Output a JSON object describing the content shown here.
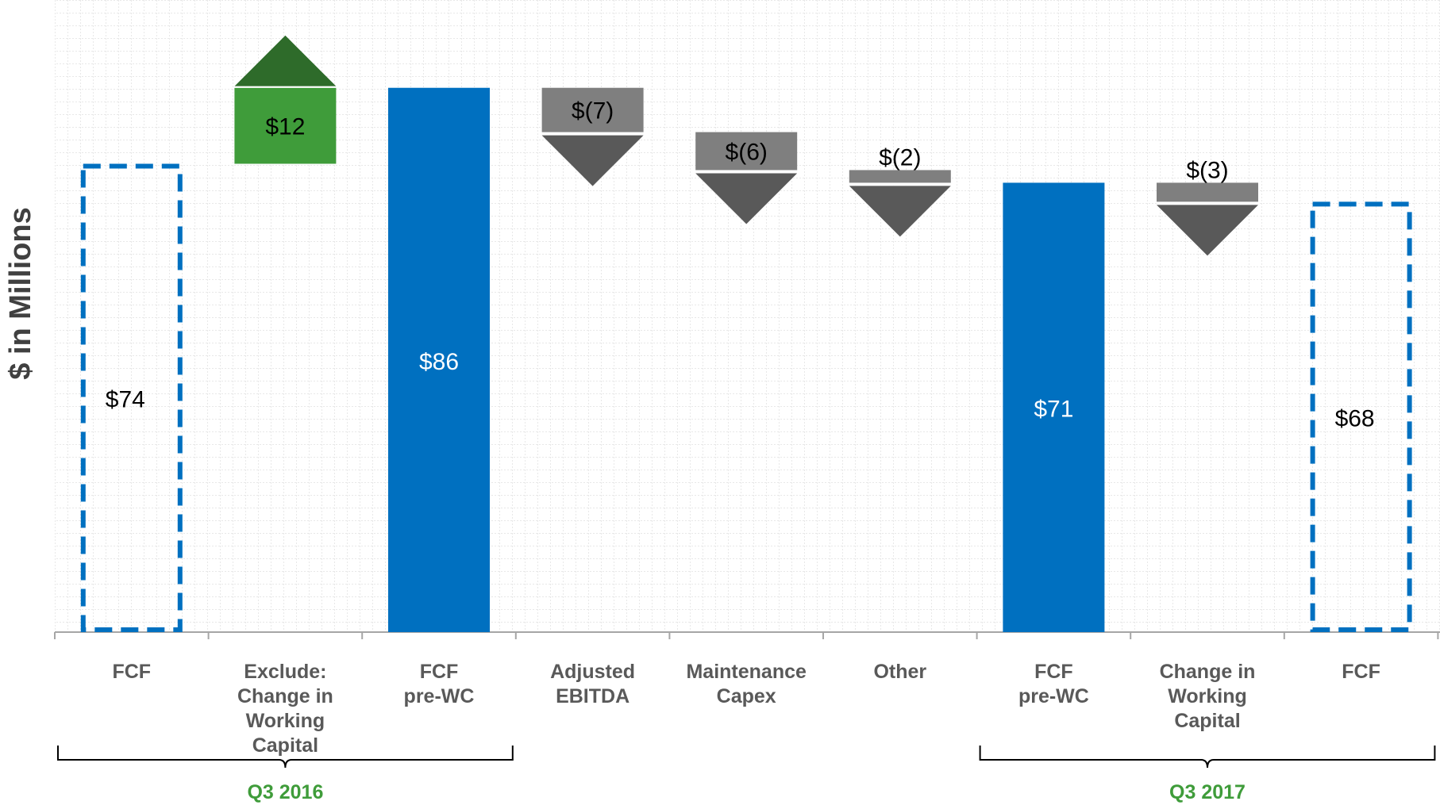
{
  "chart_data": {
    "type": "waterfall",
    "ylabel": "$ in Millions",
    "colors": {
      "total": "#0070c0",
      "increase": "#3f9c3a",
      "increase_arrow": "#2e6b2a",
      "decrease": "#7f7f7f",
      "decrease_arrow": "#595959",
      "bracket_label": "#3f9c3a",
      "axis": "#a6a6a6",
      "grid": "#d9d9d9"
    },
    "steps": [
      {
        "category": "FCF",
        "lines": [
          "FCF"
        ],
        "kind": "total_dashed",
        "value": 74,
        "label": "$74"
      },
      {
        "category": "Exclude: Change in Working Capital",
        "lines": [
          "Exclude:",
          "Change in",
          "Working",
          "Capital"
        ],
        "kind": "increase",
        "value": 12,
        "label": "$12"
      },
      {
        "category": "FCF pre-WC",
        "lines": [
          "FCF",
          "pre-WC"
        ],
        "kind": "total",
        "value": 86,
        "label": "$86"
      },
      {
        "category": "Adjusted EBITDA",
        "lines": [
          "Adjusted",
          "EBITDA"
        ],
        "kind": "decrease",
        "value": -7,
        "label": "$(7)"
      },
      {
        "category": "Maintenance Capex",
        "lines": [
          "Maintenance",
          "Capex"
        ],
        "kind": "decrease",
        "value": -6,
        "label": "$(6)"
      },
      {
        "category": "Other",
        "lines": [
          "Other"
        ],
        "kind": "decrease",
        "value": -2,
        "label": "$(2)"
      },
      {
        "category": "FCF pre-WC",
        "lines": [
          "FCF",
          "pre-WC"
        ],
        "kind": "total",
        "value": 71,
        "label": "$71"
      },
      {
        "category": "Change in Working Capital",
        "lines": [
          "Change in",
          "Working",
          "Capital"
        ],
        "kind": "decrease",
        "value": -3,
        "label": "$(3)"
      },
      {
        "category": "FCF",
        "lines": [
          "FCF"
        ],
        "kind": "total_dashed",
        "value": 68,
        "label": "$68"
      }
    ],
    "brackets": [
      {
        "label": "Q3 2016",
        "from_index": 0,
        "to_index": 2
      },
      {
        "label": "Q3 2017",
        "from_index": 6,
        "to_index": 8
      }
    ],
    "ylim": [
      0,
      95
    ],
    "grid": true,
    "legend": "none"
  }
}
